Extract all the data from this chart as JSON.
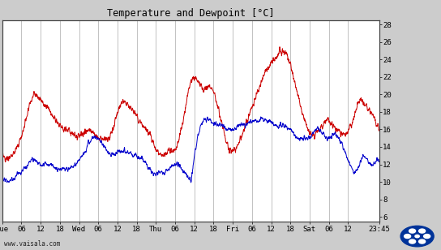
{
  "title": "Temperature and Dewpoint [°C]",
  "ylabel_right_ticks": [
    6,
    8,
    10,
    12,
    14,
    16,
    18,
    20,
    22,
    24,
    26,
    28
  ],
  "ylim": [
    5.5,
    28.5
  ],
  "bg_color": "#cccccc",
  "plot_bg_color": "#ffffff",
  "grid_color": "#aaaaaa",
  "temp_color": "#cc0000",
  "dewp_color": "#0000cc",
  "watermark": "www.vaisala.com",
  "x_tick_labels": [
    "Tue",
    "06",
    "12",
    "18",
    "Wed",
    "06",
    "12",
    "18",
    "Thu",
    "06",
    "12",
    "18",
    "Fri",
    "06",
    "12",
    "18",
    "Sat",
    "06",
    "12",
    "23:45"
  ],
  "x_tick_positions": [
    0,
    6,
    12,
    18,
    24,
    30,
    36,
    42,
    48,
    54,
    60,
    66,
    72,
    78,
    84,
    90,
    96,
    102,
    108,
    117.75
  ],
  "x_total": 117.75,
  "line_width": 0.7
}
